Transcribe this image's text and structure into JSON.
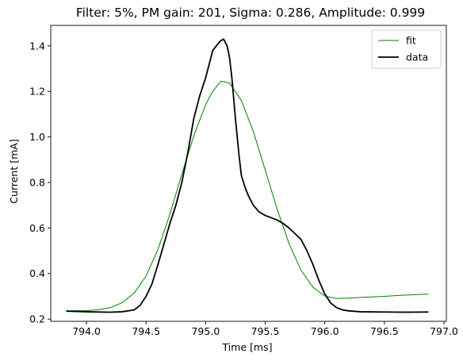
{
  "chart_data": {
    "type": "line",
    "title": "Filter: 5%, PM gain: 201, Sigma: 0.286, Amplitude: 0.999",
    "xlabel": "Time [ms]",
    "ylabel": "Current [mA]",
    "xlim": [
      793.7,
      797.02
    ],
    "ylim": [
      0.19,
      1.49
    ],
    "xticks": [
      794.0,
      794.5,
      795.0,
      795.5,
      796.0,
      796.5,
      797.0
    ],
    "xtick_labels": [
      "794.0",
      "794.5",
      "795.0",
      "795.5",
      "796.0",
      "796.5",
      "797.0"
    ],
    "yticks": [
      0.2,
      0.4,
      0.6,
      0.8,
      1.0,
      1.2,
      1.4
    ],
    "ytick_labels": [
      "0.2",
      "0.4",
      "0.6",
      "0.8",
      "1.0",
      "1.2",
      "1.4"
    ],
    "grid": false,
    "legend_position": "top-right",
    "series": [
      {
        "name": "fit",
        "color": "#008000",
        "line_width": "thin",
        "x": [
          793.83,
          794.0,
          794.1,
          794.2,
          794.3,
          794.4,
          794.5,
          794.6,
          794.7,
          794.8,
          794.9,
          795.0,
          795.05,
          795.1,
          795.13,
          795.2,
          795.3,
          795.4,
          795.5,
          795.6,
          795.7,
          795.8,
          795.9,
          796.0,
          796.1,
          796.2,
          796.3,
          796.5,
          796.7,
          796.87
        ],
        "y": [
          0.236,
          0.237,
          0.241,
          0.25,
          0.272,
          0.314,
          0.389,
          0.506,
          0.661,
          0.836,
          1.004,
          1.142,
          1.192,
          1.227,
          1.245,
          1.237,
          1.16,
          1.024,
          0.855,
          0.683,
          0.531,
          0.415,
          0.34,
          0.301,
          0.29,
          0.292,
          0.295,
          0.3,
          0.306,
          0.31
        ]
      },
      {
        "name": "data",
        "color": "#000000",
        "line_width": "thick",
        "x": [
          793.83,
          794.0,
          794.1,
          794.2,
          794.3,
          794.4,
          794.45,
          794.5,
          794.55,
          794.6,
          794.65,
          794.7,
          794.75,
          794.8,
          794.85,
          794.9,
          794.95,
          795.0,
          795.03,
          795.06,
          795.09,
          795.12,
          795.15,
          795.18,
          795.2,
          795.22,
          795.25,
          795.28,
          795.3,
          795.33,
          795.36,
          795.4,
          795.45,
          795.5,
          795.55,
          795.6,
          795.65,
          795.7,
          795.75,
          795.8,
          795.85,
          795.9,
          795.95,
          796.0,
          796.05,
          796.1,
          796.15,
          796.2,
          796.3,
          796.5,
          796.7,
          796.87
        ],
        "y": [
          0.235,
          0.232,
          0.231,
          0.23,
          0.232,
          0.24,
          0.26,
          0.3,
          0.355,
          0.44,
          0.53,
          0.62,
          0.7,
          0.8,
          0.93,
          1.08,
          1.18,
          1.26,
          1.32,
          1.38,
          1.4,
          1.42,
          1.43,
          1.4,
          1.35,
          1.26,
          1.08,
          0.92,
          0.83,
          0.78,
          0.74,
          0.7,
          0.67,
          0.655,
          0.645,
          0.635,
          0.62,
          0.6,
          0.575,
          0.55,
          0.5,
          0.44,
          0.37,
          0.31,
          0.27,
          0.25,
          0.24,
          0.236,
          0.232,
          0.231,
          0.23,
          0.231
        ]
      }
    ]
  }
}
